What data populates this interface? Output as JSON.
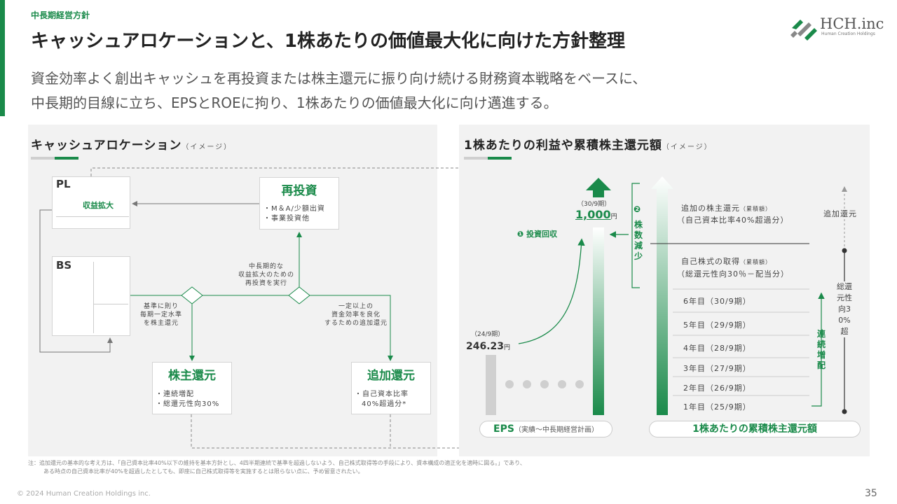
{
  "header": {
    "section_label": "中長期経営方針",
    "title": "キャッシュアロケーションと、1株あたりの価値最大化に向けた方針整理",
    "lead_line1": "資金効率よく創出キャッシュを再投資または株主還元に振り向け続ける財務資本戦略をベースに、",
    "lead_line2": "中長期的目線に立ち、EPSとROEに拘り、1株あたりの価値最大化に向け邁進する。"
  },
  "logo": {
    "name": "HCH.inc",
    "sub": "Human Creation Holdings"
  },
  "left_panel": {
    "title": "キャッシュアロケーション",
    "title_sub": "（イメージ）",
    "pl_label": "PL",
    "pl_sub": "収益拡大",
    "bs_label": "BS",
    "reinvest": {
      "title": "再投資",
      "line1": "・M＆A/少額出資",
      "line2": "・事業投資他"
    },
    "center_note": [
      "中長期的な",
      "収益拡大のための",
      "再投資を実行"
    ],
    "left_note": [
      "基準に則り",
      "毎期一定水準",
      "を株主還元"
    ],
    "right_note": [
      "一定以上の",
      "資金効率を良化",
      "するための追加還元"
    ],
    "shareholder": {
      "title": "株主還元",
      "line1": "・連続増配",
      "line2": "・総還元性向30%"
    },
    "additional": {
      "title": "追加還元",
      "line1": "・自己資本比率",
      "line2": "40%超過分*"
    }
  },
  "right_panel": {
    "title": "1株あたりの利益や累積株主還元額",
    "title_sub": "（イメージ）",
    "marker1": "❶",
    "investment_return": "投資回収",
    "marker2": "❷",
    "share_reduction": "株数減少",
    "eps_start_period": "（24/9期）",
    "eps_start_value": "246.23",
    "eps_target_period": "（30/9期）",
    "eps_target_value": "1,000",
    "yen": "円",
    "additional_return_label": "追加の株主還元",
    "additional_return_small": "（累積額）",
    "additional_return_sub": "（自己資本比率40%超過分）",
    "buyback_label": "自己株式の取得",
    "buyback_small": "（累積額）",
    "buyback_sub": "（総還元性向30％－配当分）",
    "years": [
      "6年目（30/9期）",
      "5年目（29/9期）",
      "4年目（28/9期）",
      "3年目（27/9期）",
      "2年目（26/9期）",
      "1年目（25/9期）"
    ],
    "consecutive_increase": "連続増配",
    "additional_return_side": "追加還元",
    "total_ratio": "総還元性向30%超",
    "eps_pill": "EPS",
    "eps_pill_sub": "（実績～中長期経営計画）",
    "cumulative_pill": "1株あたりの累積株主還元額"
  },
  "footnote": {
    "line1": "注：追加還元の基本的な考え方は、「自己資本比率40%以下の維持を基本方針とし、4四半期連続で基準を超過しないよう、自己株式取得等の手段により、資本構成の適正化を適時に図る。」であり、",
    "line2": "ある時点の自己資本比率が40%を超過したとしても、即座に自己株式取得等を実施するとは限らない点に、予め留意されたい。"
  },
  "copyright": "© 2024 Human Creation Holdings inc.",
  "page_number": "35",
  "colors": {
    "accent": "#1a8a4a",
    "panel": "#f2f2f2"
  }
}
